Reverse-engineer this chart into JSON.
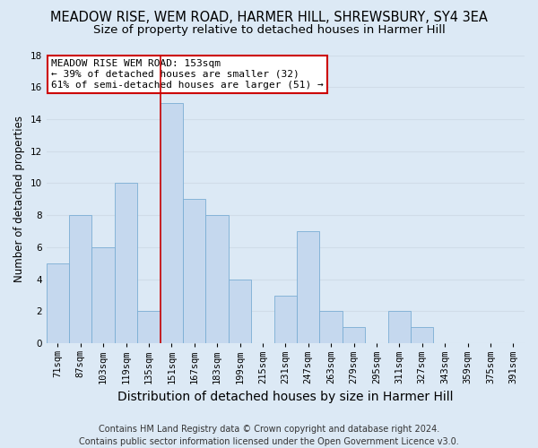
{
  "title": "MEADOW RISE, WEM ROAD, HARMER HILL, SHREWSBURY, SY4 3EA",
  "subtitle": "Size of property relative to detached houses in Harmer Hill",
  "xlabel": "Distribution of detached houses by size in Harmer Hill",
  "ylabel": "Number of detached properties",
  "bin_labels": [
    "71sqm",
    "87sqm",
    "103sqm",
    "119sqm",
    "135sqm",
    "151sqm",
    "167sqm",
    "183sqm",
    "199sqm",
    "215sqm",
    "231sqm",
    "247sqm",
    "263sqm",
    "279sqm",
    "295sqm",
    "311sqm",
    "327sqm",
    "343sqm",
    "359sqm",
    "375sqm",
    "391sqm"
  ],
  "bar_values": [
    5,
    8,
    6,
    10,
    2,
    15,
    9,
    8,
    4,
    0,
    3,
    7,
    2,
    1,
    0,
    2,
    1,
    0,
    0,
    0,
    0
  ],
  "bar_color": "#c5d8ee",
  "bar_edge_color": "#7aadd4",
  "highlight_bar_index": 5,
  "highlight_color": "#cc0000",
  "annotation_line1": "MEADOW RISE WEM ROAD: 153sqm",
  "annotation_line2": "← 39% of detached houses are smaller (32)",
  "annotation_line3": "61% of semi-detached houses are larger (51) →",
  "annotation_box_color": "#ffffff",
  "annotation_box_edge_color": "#cc0000",
  "ylim": [
    0,
    18
  ],
  "yticks": [
    0,
    2,
    4,
    6,
    8,
    10,
    12,
    14,
    16,
    18
  ],
  "grid_color": "#d0dce8",
  "bg_color": "#dce9f5",
  "plot_bg_color": "#dce9f5",
  "footer_line1": "Contains HM Land Registry data © Crown copyright and database right 2024.",
  "footer_line2": "Contains public sector information licensed under the Open Government Licence v3.0.",
  "title_fontsize": 10.5,
  "subtitle_fontsize": 9.5,
  "xlabel_fontsize": 10,
  "ylabel_fontsize": 8.5,
  "tick_fontsize": 7.5,
  "annotation_fontsize": 8,
  "footer_fontsize": 7
}
